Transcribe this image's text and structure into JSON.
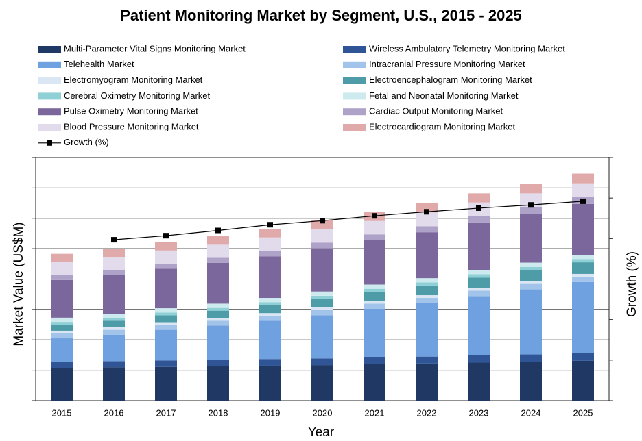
{
  "chart_data": {
    "type": "bar",
    "stacked": true,
    "title": "Patient Monitoring Market by Segment, U.S., 2015 - 2025",
    "xlabel": "Year",
    "ylabel": "Market Value (US$M)",
    "y2label": "Growth (%)",
    "categories": [
      "2015",
      "2016",
      "2017",
      "2018",
      "2019",
      "2020",
      "2021",
      "2022",
      "2023",
      "2024",
      "2025"
    ],
    "ylim": [
      0,
      800
    ],
    "yticks": [
      0,
      100,
      200,
      300,
      400,
      500,
      600,
      700,
      800
    ],
    "y2lim": [
      0,
      6
    ],
    "y2ticks": [
      0,
      1,
      2,
      3,
      4,
      5,
      6
    ],
    "grid": true,
    "series": [
      {
        "name": "Multi-Parameter Vital Signs Monitoring Market",
        "color": "#1f3864",
        "values": [
          108,
          110,
          111,
          113,
          115,
          117,
          120,
          122,
          125,
          128,
          131
        ]
      },
      {
        "name": "Wireless Ambulatory Telemetry Monitoring Market",
        "color": "#2f5597",
        "values": [
          20,
          20,
          21,
          21,
          22,
          22,
          23,
          23,
          24,
          24,
          25
        ]
      },
      {
        "name": "Telehealth Market",
        "color": "#6fa0e0",
        "values": [
          77,
          87,
          101,
          113,
          126,
          142,
          159,
          176,
          195,
          214,
          234
        ]
      },
      {
        "name": "Intracranial Pressure Monitoring Market",
        "color": "#a3c4ea",
        "values": [
          16,
          16,
          16,
          16,
          16,
          17,
          17,
          17,
          18,
          18,
          18
        ]
      },
      {
        "name": "Electromyogram Monitoring Market",
        "color": "#dae6f3",
        "values": [
          9,
          9,
          9,
          9,
          9,
          9,
          9,
          9,
          9,
          9,
          9
        ]
      },
      {
        "name": "Electroencephalogram Monitoring Market",
        "color": "#4d9ca8",
        "values": [
          20,
          21,
          23,
          24,
          26,
          28,
          30,
          32,
          34,
          36,
          38
        ]
      },
      {
        "name": "Cerebral Oximetry Monitoring Market",
        "color": "#8ed0d6",
        "values": [
          9,
          9,
          9,
          9,
          10,
          10,
          10,
          10,
          11,
          11,
          11
        ]
      },
      {
        "name": "Fetal and Neonatal Monitoring Market",
        "color": "#cdebee",
        "values": [
          14,
          14,
          14,
          14,
          14,
          14,
          14,
          14,
          14,
          14,
          14
        ]
      },
      {
        "name": "Pulse Oximetry Monitoring Market",
        "color": "#7b679b",
        "values": [
          124,
          127,
          130,
          134,
          137,
          142,
          146,
          151,
          156,
          161,
          167
        ]
      },
      {
        "name": "Cardiac Output Monitoring Market",
        "color": "#afa2c8",
        "values": [
          16,
          16,
          17,
          17,
          18,
          19,
          19,
          20,
          21,
          22,
          23
        ]
      },
      {
        "name": "Blood Pressure Monitoring Market",
        "color": "#e2dbec",
        "values": [
          43,
          43,
          43,
          43,
          44,
          44,
          44,
          45,
          45,
          45,
          45
        ]
      },
      {
        "name": "Electrocardiogram Monitoring Market",
        "color": "#e0a9aa",
        "values": [
          27,
          27,
          28,
          28,
          28,
          29,
          29,
          30,
          30,
          31,
          32
        ]
      },
      {
        "name": "Growth (%)",
        "type": "line",
        "axis": "y2",
        "color": "#000000",
        "values": [
          null,
          3.97,
          4.07,
          4.2,
          4.34,
          4.44,
          4.56,
          4.66,
          4.75,
          4.83,
          4.92
        ]
      }
    ]
  }
}
